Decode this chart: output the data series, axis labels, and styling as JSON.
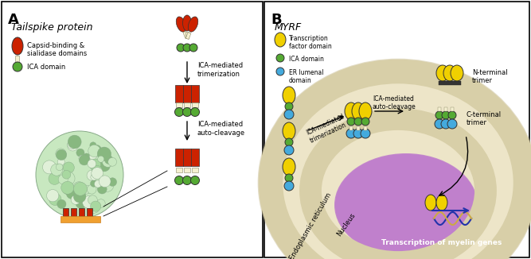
{
  "panel_A_title": "Tailspike protein",
  "panel_B_title": "MYRF",
  "label_A": "A",
  "label_B": "B",
  "legend_A": [
    {
      "color": "#cc2200",
      "text": "Capsid-binding &\nsialidase domains"
    },
    {
      "color": "#66bb44",
      "text": "ICA domain"
    }
  ],
  "legend_B": [
    {
      "color": "#f0d000",
      "text": "Transcription\nfactor domain"
    },
    {
      "color": "#66bb44",
      "text": "ICA domain"
    },
    {
      "color": "#44aadd",
      "text": "ER lumenal\ndomain"
    }
  ],
  "arrow_text_1": "ICA-mediated\ntrimerization",
  "arrow_text_2": "ICA-mediated\nauto-cleavage",
  "arrow_text_3": "ICA-mediated\nauto-cleavage",
  "arrow_text_4": "ICA-mediated\ntrimerization",
  "n_terminal": "N-terminal\ntrimer",
  "c_terminal": "C-terminal\ntrimer",
  "er_label": "Endoplasmic reticulum",
  "nucleus_label": "Nucleus",
  "transcription_label": "Transcription of myelin genes",
  "bg_color": "#ffffff",
  "border_color": "#000000",
  "red": "#cc2200",
  "green": "#55aa33",
  "yellow": "#f0d000",
  "blue": "#44aadd",
  "cream": "#f5f0d0",
  "er_bg": "#d8cfa8",
  "nucleus_bg": "#c080cc",
  "dna_blue": "#2233aa",
  "dna_gold": "#ccaa44"
}
